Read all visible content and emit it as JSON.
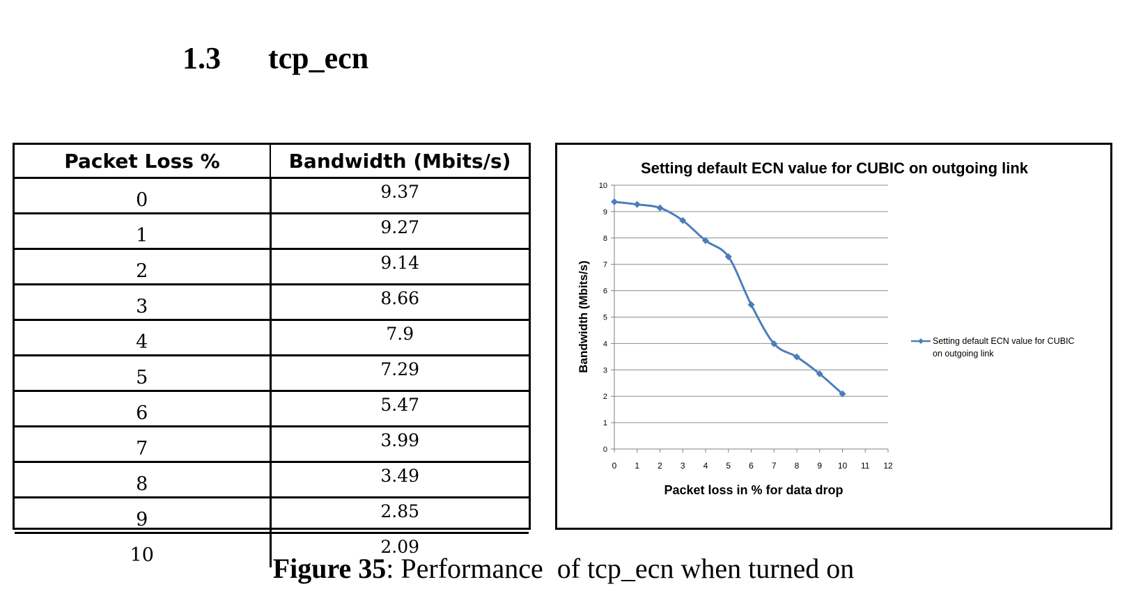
{
  "section": {
    "number": "1.3",
    "title": "tcp_ecn"
  },
  "table": {
    "headers": [
      "Packet Loss %",
      "Bandwidth (Mbits/s)"
    ],
    "rows": [
      [
        "0",
        "9.37"
      ],
      [
        "1",
        "9.27"
      ],
      [
        "2",
        "9.14"
      ],
      [
        "3",
        "8.66"
      ],
      [
        "4",
        "7.9"
      ],
      [
        "5",
        "7.29"
      ],
      [
        "6",
        "5.47"
      ],
      [
        "7",
        "3.99"
      ],
      [
        "8",
        "3.49"
      ],
      [
        "9",
        "2.85"
      ],
      [
        "10",
        "2.09"
      ]
    ]
  },
  "chart_data": {
    "type": "line",
    "title": "Setting default ECN value for CUBIC on outgoing link",
    "xlabel": "Packet loss in % for data drop",
    "ylabel": "Bandwidth (Mbits/s)",
    "xlim": [
      0,
      12
    ],
    "ylim": [
      0,
      10
    ],
    "x_ticks": [
      "0",
      "1",
      "2",
      "3",
      "4",
      "5",
      "6",
      "7",
      "8",
      "9",
      "10",
      "11",
      "12"
    ],
    "y_ticks": [
      "0",
      "1",
      "2",
      "3",
      "4",
      "5",
      "6",
      "7",
      "8",
      "9",
      "10"
    ],
    "grid": true,
    "legend_position": "right",
    "series": [
      {
        "name": "Setting default ECN value for CUBIC on outgoing link",
        "color": "#4a7ebb",
        "marker": "diamond",
        "x": [
          0,
          1,
          2,
          3,
          4,
          5,
          6,
          7,
          8,
          9,
          10
        ],
        "values": [
          9.37,
          9.27,
          9.14,
          8.66,
          7.9,
          7.29,
          5.47,
          3.99,
          3.49,
          2.85,
          2.09
        ]
      }
    ]
  },
  "caption": {
    "label": "Figure 35",
    "text": ": Performance  of tcp_ecn when turned on"
  }
}
